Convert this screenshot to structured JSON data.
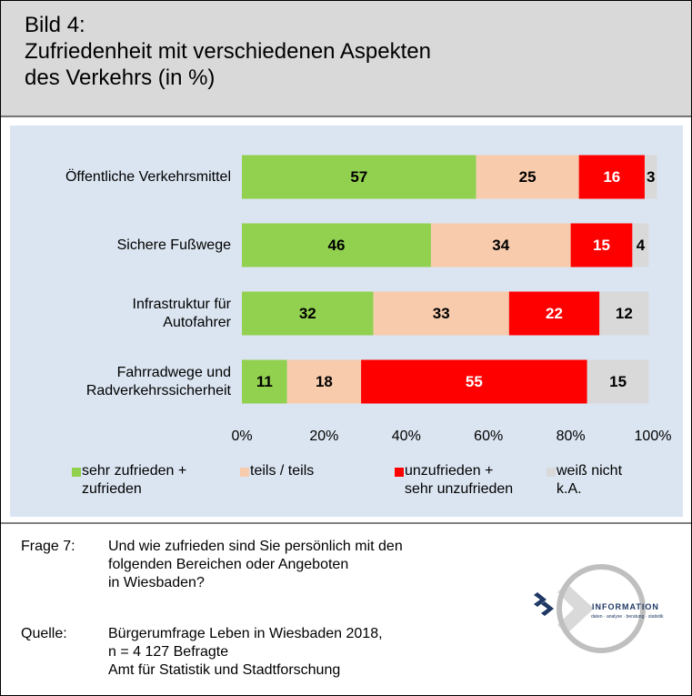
{
  "chart_data": {
    "type": "stacked_barh",
    "title": "Bild 4:\nZufriedenheit mit verschiedenen Aspekten\ndes Verkehrs (in %)",
    "categories": [
      "Öffentliche Verkehrsmittel",
      "Sichere Fußwege",
      "Infrastruktur für\nAutofahrer",
      "Fahrradwege und\nRadverkehrssicherheit"
    ],
    "series": [
      {
        "name": "sehr zufrieden +\nzufrieden",
        "color": "#92d050",
        "label_color": "#000000",
        "values": [
          57,
          46,
          32,
          11
        ]
      },
      {
        "name": "teils / teils",
        "color": "#f8cbad",
        "label_color": "#000000",
        "values": [
          25,
          34,
          33,
          18
        ]
      },
      {
        "name": "unzufrieden +\nsehr unzufrieden",
        "color": "#ff0000",
        "label_color": "#ffffff",
        "values": [
          16,
          15,
          22,
          55
        ]
      },
      {
        "name": "weiß nicht\nk.A.",
        "color": "#d9d9d9",
        "label_color": "#000000",
        "values": [
          3,
          4,
          12,
          15
        ]
      }
    ],
    "xlim": [
      0,
      100
    ],
    "xticks": [
      {
        "value": 0,
        "label": "0%"
      },
      {
        "value": 20,
        "label": "20%"
      },
      {
        "value": 40,
        "label": "40%"
      },
      {
        "value": 60,
        "label": "60%"
      },
      {
        "value": 80,
        "label": "80%"
      },
      {
        "value": 100,
        "label": "100%"
      }
    ],
    "legend": "bottom"
  },
  "footer": {
    "notes": [
      {
        "label": "Frage 7:",
        "text": "Und wie zufrieden sind Sie persönlich mit den\nfolgenden Bereichen oder Angeboten\nin Wiesbaden?"
      },
      {
        "label": "Quelle:",
        "text": "Bürgerumfrage Leben in Wiesbaden 2018,\nn = 4 127 Befragte\nAmt für Statistik und Stadtforschung"
      }
    ]
  },
  "logo": {
    "title": "INFORMATION",
    "subtitle": "daten · analyse · beratung · statistik"
  }
}
